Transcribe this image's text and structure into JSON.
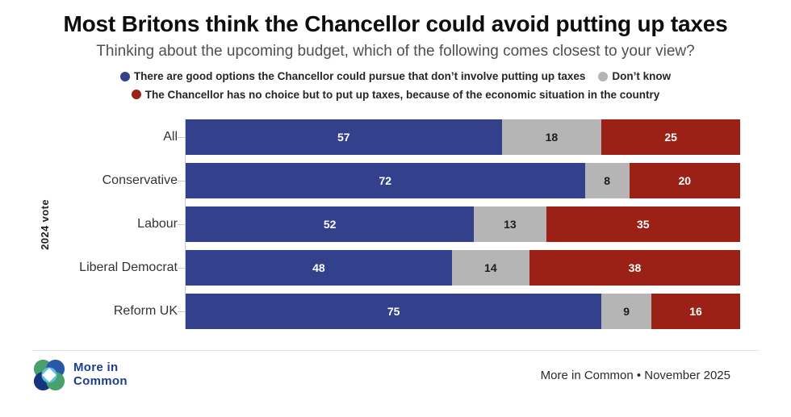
{
  "header": {
    "title": "Most Britons think the Chancellor could avoid putting up taxes",
    "subtitle": "Thinking about the upcoming budget, which of the following comes closest to your view?"
  },
  "legend": {
    "items": [
      {
        "label": "There are good options the Chancellor could pursue that don’t involve putting up taxes",
        "color": "#33418c"
      },
      {
        "label": "Don’t know",
        "color": "#b5b5b5"
      },
      {
        "label": "The Chancellor has no choice but to put up taxes, because of the economic situation in the country",
        "color": "#9b2116"
      }
    ]
  },
  "chart_data": {
    "type": "bar",
    "orientation": "horizontal",
    "stacked": true,
    "categories": [
      "All",
      "Conservative",
      "Labour",
      "Liberal Democrat",
      "Reform UK"
    ],
    "series": [
      {
        "name": "There are good options the Chancellor could pursue that don’t involve putting up taxes",
        "color": "#33418c",
        "value_label_color": "#ffffff",
        "values": [
          57,
          72,
          52,
          48,
          75
        ]
      },
      {
        "name": "Don’t know",
        "color": "#b5b5b5",
        "value_label_color": "#1c1c1c",
        "values": [
          18,
          8,
          13,
          14,
          9
        ]
      },
      {
        "name": "The Chancellor has no choice but to put up taxes, because of the economic situation in the country",
        "color": "#9b2116",
        "value_label_color": "#ffffff",
        "values": [
          25,
          20,
          35,
          38,
          16
        ]
      }
    ],
    "hatched_categories": [
      "All"
    ],
    "ylabel": "2024 vote",
    "xlim": [
      0,
      100
    ],
    "grid": false,
    "legend_position": "top"
  },
  "footer": {
    "brand_line1": "More in",
    "brand_line2": "Common",
    "source": "More in Common • November 2025"
  },
  "colors": {
    "accent_blue": "#33418c",
    "neutral_gray": "#b5b5b5",
    "accent_red": "#9b2116",
    "logo_navy": "#1e3d8f",
    "logo_green": "#4aa06a",
    "logo_blue": "#2b57a8",
    "logo_dark_navy": "#17357e",
    "logo_light_blue": "#58bfe8"
  }
}
